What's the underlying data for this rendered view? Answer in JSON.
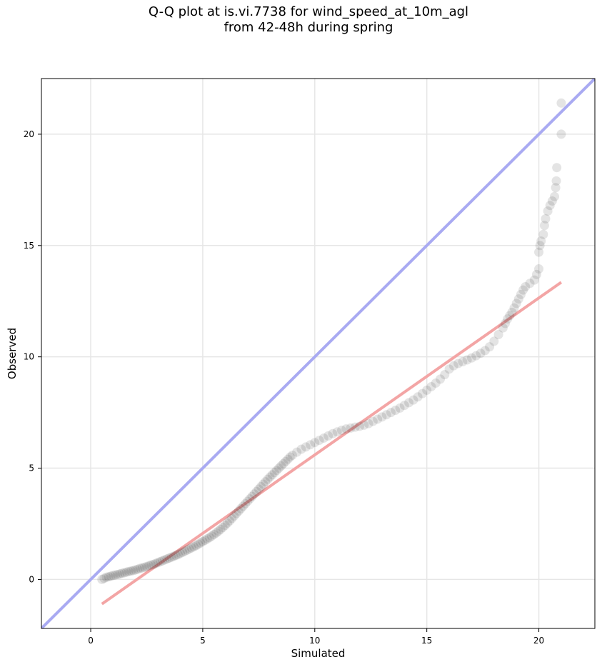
{
  "chart_data": {
    "type": "scatter",
    "title_lines": [
      "Q-Q plot at is.vi.7738 for wind_speed_at_10m_agl",
      "from 42-48h during spring"
    ],
    "xlabel": "Simulated",
    "ylabel": "Observed",
    "xlim": [
      -2.2,
      22.5
    ],
    "ylim": [
      -2.2,
      22.5
    ],
    "xticks": [
      0,
      5,
      10,
      15,
      20
    ],
    "yticks": [
      0,
      5,
      10,
      15,
      20
    ],
    "grid": true,
    "colors": {
      "points": "#222222",
      "identity_line": "#a9aaf2",
      "fit_line": "#f3a5a5",
      "fit_line_dark": "#8b0000",
      "grid": "#e6e6e6"
    },
    "series": [
      {
        "kind": "quantile_points",
        "points": [
          [
            0.5,
            0.0
          ],
          [
            0.6,
            0.05
          ],
          [
            0.7,
            0.1
          ],
          [
            0.8,
            0.12
          ],
          [
            0.9,
            0.15
          ],
          [
            1.0,
            0.18
          ],
          [
            1.1,
            0.2
          ],
          [
            1.2,
            0.22
          ],
          [
            1.3,
            0.25
          ],
          [
            1.4,
            0.28
          ],
          [
            1.5,
            0.3
          ],
          [
            1.6,
            0.33
          ],
          [
            1.7,
            0.36
          ],
          [
            1.8,
            0.38
          ],
          [
            1.9,
            0.4
          ],
          [
            2.0,
            0.43
          ],
          [
            2.1,
            0.46
          ],
          [
            2.2,
            0.5
          ],
          [
            2.3,
            0.52
          ],
          [
            2.4,
            0.55
          ],
          [
            2.5,
            0.58
          ],
          [
            2.6,
            0.62
          ],
          [
            2.7,
            0.65
          ],
          [
            2.8,
            0.68
          ],
          [
            2.9,
            0.72
          ],
          [
            3.0,
            0.76
          ],
          [
            3.1,
            0.8
          ],
          [
            3.2,
            0.84
          ],
          [
            3.3,
            0.88
          ],
          [
            3.4,
            0.92
          ],
          [
            3.5,
            0.96
          ],
          [
            3.6,
            1.0
          ],
          [
            3.7,
            1.04
          ],
          [
            3.8,
            1.08
          ],
          [
            3.9,
            1.12
          ],
          [
            4.0,
            1.17
          ],
          [
            4.1,
            1.22
          ],
          [
            4.2,
            1.27
          ],
          [
            4.3,
            1.32
          ],
          [
            4.4,
            1.37
          ],
          [
            4.5,
            1.42
          ],
          [
            4.6,
            1.47
          ],
          [
            4.7,
            1.52
          ],
          [
            4.8,
            1.58
          ],
          [
            4.9,
            1.64
          ],
          [
            5.0,
            1.7
          ],
          [
            5.1,
            1.76
          ],
          [
            5.2,
            1.82
          ],
          [
            5.3,
            1.88
          ],
          [
            5.4,
            1.95
          ],
          [
            5.5,
            2.02
          ],
          [
            5.6,
            2.09
          ],
          [
            5.7,
            2.17
          ],
          [
            5.8,
            2.25
          ],
          [
            5.9,
            2.34
          ],
          [
            6.0,
            2.43
          ],
          [
            6.1,
            2.53
          ],
          [
            6.2,
            2.63
          ],
          [
            6.3,
            2.74
          ],
          [
            6.4,
            2.85
          ],
          [
            6.5,
            2.96
          ],
          [
            6.6,
            3.07
          ],
          [
            6.7,
            3.18
          ],
          [
            6.8,
            3.29
          ],
          [
            6.9,
            3.4
          ],
          [
            7.0,
            3.51
          ],
          [
            7.1,
            3.62
          ],
          [
            7.2,
            3.73
          ],
          [
            7.3,
            3.84
          ],
          [
            7.4,
            3.95
          ],
          [
            7.5,
            4.06
          ],
          [
            7.6,
            4.17
          ],
          [
            7.7,
            4.28
          ],
          [
            7.8,
            4.39
          ],
          [
            7.9,
            4.5
          ],
          [
            8.0,
            4.6
          ],
          [
            8.1,
            4.7
          ],
          [
            8.2,
            4.8
          ],
          [
            8.3,
            4.9
          ],
          [
            8.4,
            5.0
          ],
          [
            8.5,
            5.1
          ],
          [
            8.6,
            5.2
          ],
          [
            8.7,
            5.3
          ],
          [
            8.8,
            5.4
          ],
          [
            8.9,
            5.5
          ],
          [
            9.0,
            5.58
          ],
          [
            9.2,
            5.72
          ],
          [
            9.4,
            5.85
          ],
          [
            9.6,
            5.95
          ],
          [
            9.8,
            6.05
          ],
          [
            10.0,
            6.15
          ],
          [
            10.2,
            6.25
          ],
          [
            10.4,
            6.35
          ],
          [
            10.6,
            6.45
          ],
          [
            10.8,
            6.55
          ],
          [
            11.0,
            6.63
          ],
          [
            11.2,
            6.7
          ],
          [
            11.4,
            6.76
          ],
          [
            11.6,
            6.8
          ],
          [
            11.8,
            6.84
          ],
          [
            12.0,
            6.88
          ],
          [
            12.2,
            6.93
          ],
          [
            12.4,
            7.0
          ],
          [
            12.6,
            7.1
          ],
          [
            12.8,
            7.2
          ],
          [
            13.0,
            7.3
          ],
          [
            13.2,
            7.4
          ],
          [
            13.4,
            7.5
          ],
          [
            13.6,
            7.6
          ],
          [
            13.8,
            7.7
          ],
          [
            14.0,
            7.82
          ],
          [
            14.2,
            7.94
          ],
          [
            14.4,
            8.06
          ],
          [
            14.6,
            8.2
          ],
          [
            14.8,
            8.35
          ],
          [
            15.0,
            8.5
          ],
          [
            15.2,
            8.66
          ],
          [
            15.4,
            8.82
          ],
          [
            15.6,
            9.0
          ],
          [
            15.8,
            9.2
          ],
          [
            16.0,
            9.45
          ],
          [
            16.2,
            9.6
          ],
          [
            16.4,
            9.7
          ],
          [
            16.6,
            9.78
          ],
          [
            16.8,
            9.86
          ],
          [
            17.0,
            9.95
          ],
          [
            17.2,
            10.05
          ],
          [
            17.4,
            10.16
          ],
          [
            17.6,
            10.28
          ],
          [
            17.8,
            10.45
          ],
          [
            18.0,
            10.7
          ],
          [
            18.2,
            11.0
          ],
          [
            18.4,
            11.3
          ],
          [
            18.5,
            11.5
          ],
          [
            18.6,
            11.7
          ],
          [
            18.7,
            11.85
          ],
          [
            18.8,
            12.0
          ],
          [
            18.9,
            12.2
          ],
          [
            19.0,
            12.4
          ],
          [
            19.1,
            12.6
          ],
          [
            19.2,
            12.8
          ],
          [
            19.3,
            13.0
          ],
          [
            19.4,
            13.15
          ],
          [
            19.6,
            13.3
          ],
          [
            19.8,
            13.45
          ],
          [
            19.9,
            13.7
          ],
          [
            20.0,
            13.95
          ],
          [
            20.0,
            14.7
          ],
          [
            20.05,
            15.0
          ],
          [
            20.1,
            15.2
          ],
          [
            20.2,
            15.5
          ],
          [
            20.25,
            15.9
          ],
          [
            20.3,
            16.2
          ],
          [
            20.4,
            16.55
          ],
          [
            20.5,
            16.8
          ],
          [
            20.6,
            17.0
          ],
          [
            20.7,
            17.2
          ],
          [
            20.75,
            17.6
          ],
          [
            20.78,
            17.9
          ],
          [
            20.8,
            18.5
          ],
          [
            21.0,
            20.0
          ],
          [
            21.0,
            21.4
          ]
        ]
      },
      {
        "kind": "identity_line",
        "points": [
          [
            -2.2,
            -2.2
          ],
          [
            22.5,
            22.5
          ]
        ]
      },
      {
        "kind": "fit_line",
        "points": [
          [
            0.5,
            -1.1
          ],
          [
            21.0,
            13.35
          ]
        ]
      }
    ]
  }
}
